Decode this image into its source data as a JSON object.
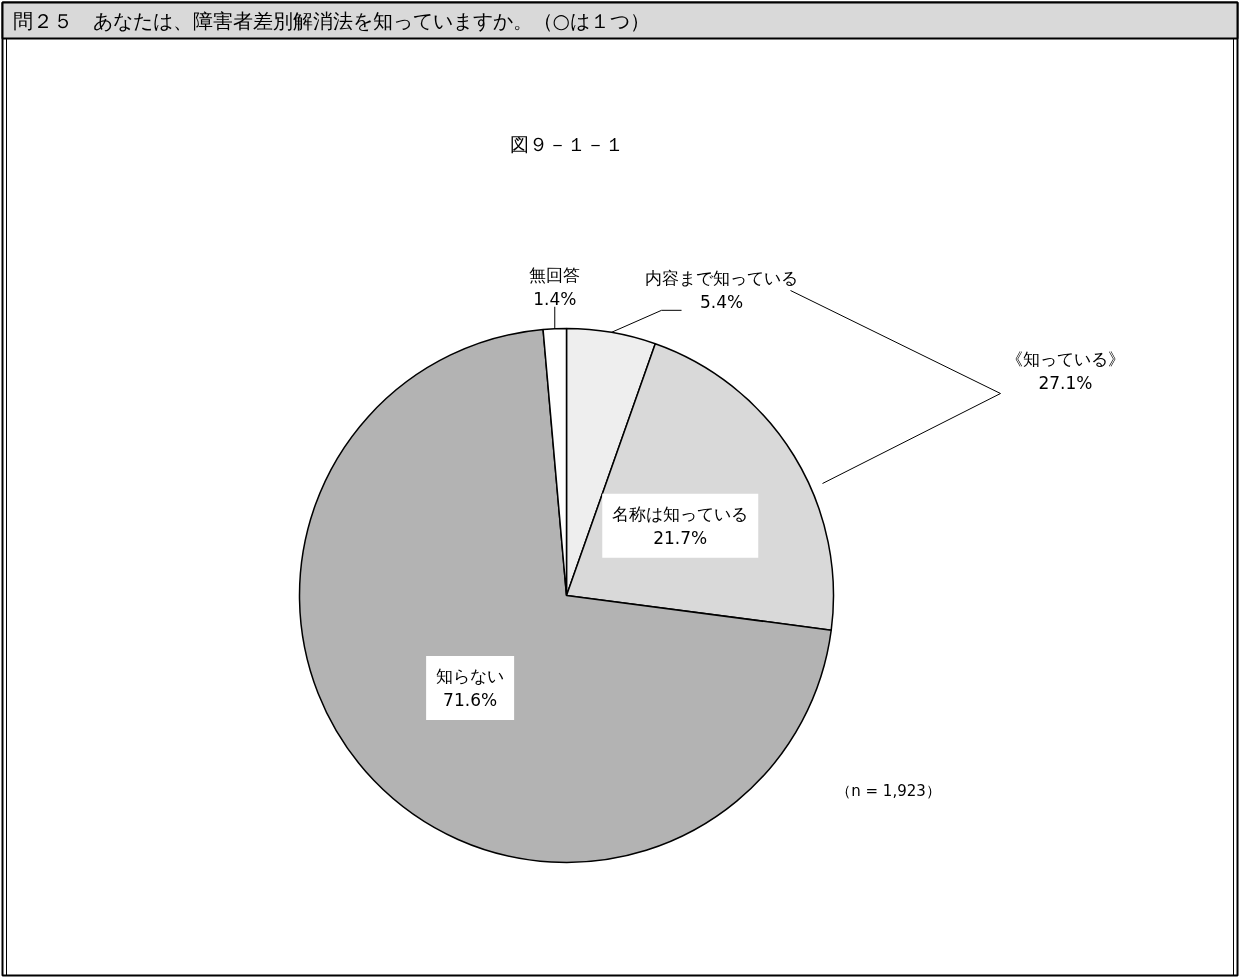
{
  "chart_data": {
    "type": "pie",
    "title": "問２５　あなたは、障害者差別解消法を知っていますか。（○は１つ）",
    "subtitle": "図９－１－１",
    "categories": [
      "内容まで知っている",
      "名称は知っている",
      "知らない",
      "無回答"
    ],
    "values": [
      5.4,
      21.7,
      71.6,
      1.4
    ],
    "colors": [
      "#eeeeee",
      "#d9d9d9",
      "#b3b3b3",
      "#ffffff"
    ],
    "value_labels": [
      "5.4%",
      "21.7%",
      "71.6%",
      "1.4%"
    ],
    "annotations": [
      "《知っている》\n27.1%",
      "（n = 1,923）"
    ]
  }
}
